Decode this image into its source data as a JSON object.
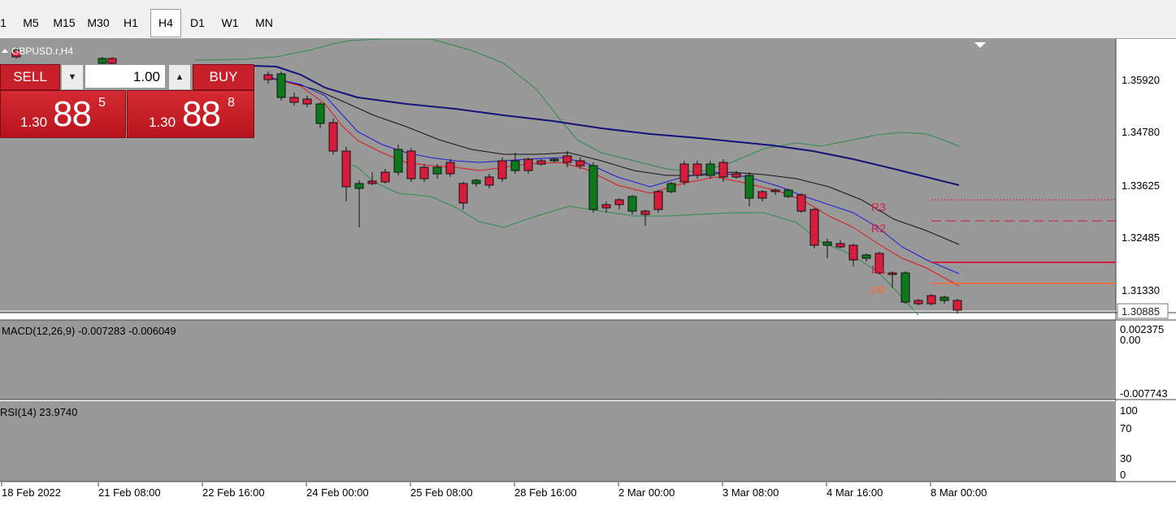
{
  "toolbar": {
    "timeframes": [
      {
        "label": "1",
        "active": false
      },
      {
        "label": "M5",
        "active": false
      },
      {
        "label": "M15",
        "active": false
      },
      {
        "label": "M30",
        "active": false
      },
      {
        "label": "H1",
        "active": false
      },
      {
        "label": "H4",
        "active": true
      },
      {
        "label": "D1",
        "active": false
      },
      {
        "label": "W1",
        "active": false
      },
      {
        "label": "MN",
        "active": false
      }
    ]
  },
  "chart": {
    "symbol_label": "GBPUSD.r,H4",
    "price_axis": [
      "1.35920",
      "1.34780",
      "1.33625",
      "1.32485",
      "1.31330"
    ],
    "current_price": "1.30885",
    "pivot_labels": [
      "R3",
      "R2",
      "R1",
      "PP"
    ],
    "time_axis": [
      "18 Feb 2022",
      "21 Feb 08:00",
      "22 Feb 16:00",
      "24 Feb 00:00",
      "25 Feb 08:00",
      "28 Feb 16:00",
      "2 Mar 00:00",
      "3 Mar 08:00",
      "4 Mar 16:00",
      "8 Mar 00:00"
    ],
    "colors": {
      "background": "#999999",
      "bull": "#0c7a1c",
      "bear": "#d81c3c",
      "pivot": "#d81c3c",
      "pp": "#ff6633",
      "ma_fast": "#1c1cd8",
      "ma_mid": "#e01818",
      "ma_slow": "#141414",
      "ma_long": "#141478",
      "bands": "#2e8c4a",
      "macd_signal": "#cc1111",
      "rsi": "#1e6fd8"
    }
  },
  "trade_panel": {
    "sell_label": "SELL",
    "buy_label": "BUY",
    "volume": "1.00",
    "sell_price": {
      "prefix": "1.30",
      "big": "88",
      "sup": "5"
    },
    "buy_price": {
      "prefix": "1.30",
      "big": "88",
      "sup": "8"
    }
  },
  "macd": {
    "label": "MACD(12,26,9) -0.007283 -0.006049",
    "axis": [
      "0.002375",
      "0.00",
      "-0.007743"
    ]
  },
  "rsi": {
    "label": "RSI(14) 23.9740",
    "axis": [
      "100",
      "70",
      "30",
      "0"
    ]
  }
}
